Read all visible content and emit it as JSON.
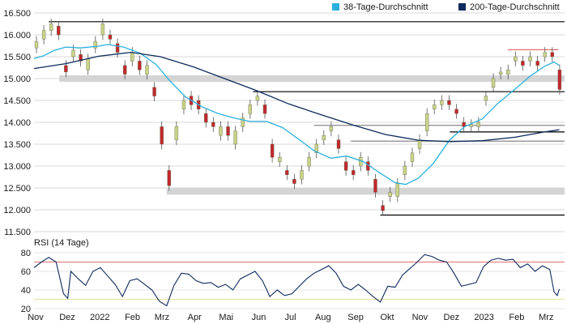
{
  "chart_data": [
    {
      "type": "candlestick",
      "ylim": [
        11500,
        16500
      ],
      "y_ticks": [
        "16.500",
        "16.000",
        "15.500",
        "15.000",
        "14.500",
        "14.000",
        "13.500",
        "13.000",
        "12.500",
        "12.000",
        "11.500"
      ],
      "y_tick_values": [
        16500,
        16000,
        15500,
        15000,
        14500,
        14000,
        13500,
        13000,
        12500,
        12000,
        11500
      ],
      "x_range": [
        "2021-11-01",
        "2023-03-20"
      ],
      "grid": "horizontal",
      "legend_position": "top-right",
      "colors": {
        "up": "#c9d38a",
        "down": "#c0282d",
        "sma38": "#2bb0dc",
        "sma200": "#0e2a5c",
        "support_band": "#d4d4d4",
        "line": "#000000",
        "resistance_red": "#e07070"
      },
      "series": [
        {
          "name": "38-Tage-Durchschnitt",
          "kind": "line",
          "color": "#2bb0dc",
          "points": [
            [
              "2021-11-01",
              15460
            ],
            [
              "2021-11-10",
              15520
            ],
            [
              "2021-11-20",
              15640
            ],
            [
              "2021-12-01",
              15720
            ],
            [
              "2021-12-15",
              15700
            ],
            [
              "2022-01-01",
              15740
            ],
            [
              "2022-01-10",
              15780
            ],
            [
              "2022-01-25",
              15720
            ],
            [
              "2022-02-10",
              15580
            ],
            [
              "2022-02-25",
              15320
            ],
            [
              "2022-03-10",
              14950
            ],
            [
              "2022-03-25",
              14580
            ],
            [
              "2022-04-10",
              14350
            ],
            [
              "2022-04-25",
              14200
            ],
            [
              "2022-05-10",
              14100
            ],
            [
              "2022-05-25",
              14020
            ],
            [
              "2022-06-10",
              14020
            ],
            [
              "2022-06-25",
              13880
            ],
            [
              "2022-07-10",
              13620
            ],
            [
              "2022-07-25",
              13350
            ],
            [
              "2022-08-10",
              13180
            ],
            [
              "2022-08-25",
              13230
            ],
            [
              "2022-09-10",
              13100
            ],
            [
              "2022-09-25",
              12850
            ],
            [
              "2022-10-10",
              12620
            ],
            [
              "2022-10-20",
              12580
            ],
            [
              "2022-11-01",
              12720
            ],
            [
              "2022-11-15",
              13050
            ],
            [
              "2022-12-01",
              13600
            ],
            [
              "2022-12-15",
              13900
            ],
            [
              "2023-01-01",
              14080
            ],
            [
              "2023-01-15",
              14420
            ],
            [
              "2023-02-01",
              14760
            ],
            [
              "2023-02-15",
              15050
            ],
            [
              "2023-03-01",
              15280
            ],
            [
              "2023-03-10",
              15380
            ],
            [
              "2023-03-15",
              15300
            ]
          ]
        },
        {
          "name": "200-Tage-Durchschnitt",
          "kind": "line",
          "color": "#0e2a5c",
          "points": [
            [
              "2021-11-01",
              15230
            ],
            [
              "2021-12-01",
              15340
            ],
            [
              "2022-01-01",
              15510
            ],
            [
              "2022-02-01",
              15600
            ],
            [
              "2022-03-01",
              15500
            ],
            [
              "2022-04-01",
              15270
            ],
            [
              "2022-05-01",
              15000
            ],
            [
              "2022-06-01",
              14720
            ],
            [
              "2022-07-01",
              14420
            ],
            [
              "2022-08-01",
              14170
            ],
            [
              "2022-09-01",
              13930
            ],
            [
              "2022-10-01",
              13720
            ],
            [
              "2022-11-01",
              13590
            ],
            [
              "2022-12-01",
              13560
            ],
            [
              "2023-01-01",
              13580
            ],
            [
              "2023-02-01",
              13660
            ],
            [
              "2023-03-01",
              13780
            ],
            [
              "2023-03-15",
              13830
            ]
          ]
        }
      ],
      "candles_approx": [
        [
          "2021-11-01",
          15700,
          15850
        ],
        [
          "2021-11-08",
          15900,
          16100
        ],
        [
          "2021-11-15",
          16100,
          16250
        ],
        [
          "2021-11-22",
          16200,
          16000
        ],
        [
          "2021-11-29",
          15300,
          15150
        ],
        [
          "2021-12-06",
          15500,
          15650
        ],
        [
          "2021-12-13",
          15550,
          15400
        ],
        [
          "2021-12-20",
          15200,
          15450
        ],
        [
          "2021-12-27",
          15700,
          15850
        ],
        [
          "2022-01-03",
          16000,
          16250
        ],
        [
          "2022-01-10",
          16000,
          15900
        ],
        [
          "2022-01-17",
          15800,
          15600
        ],
        [
          "2022-01-24",
          15300,
          15100
        ],
        [
          "2022-01-31",
          15400,
          15600
        ],
        [
          "2022-02-07",
          15400,
          15200
        ],
        [
          "2022-02-14",
          15100,
          15300
        ],
        [
          "2022-02-21",
          14800,
          14600
        ],
        [
          "2022-02-28",
          13900,
          13500
        ],
        [
          "2022-03-07",
          12900,
          12550
        ],
        [
          "2022-03-14",
          13600,
          13900
        ],
        [
          "2022-03-21",
          14300,
          14500
        ],
        [
          "2022-03-28",
          14600,
          14400
        ],
        [
          "2022-04-04",
          14500,
          14300
        ],
        [
          "2022-04-11",
          14200,
          14000
        ],
        [
          "2022-04-18",
          14000,
          13900
        ],
        [
          "2022-04-25",
          13700,
          13900
        ],
        [
          "2022-05-02",
          13900,
          13700
        ],
        [
          "2022-05-09",
          13500,
          13800
        ],
        [
          "2022-05-16",
          13900,
          14100
        ],
        [
          "2022-05-23",
          14200,
          14400
        ],
        [
          "2022-05-30",
          14500,
          14600
        ],
        [
          "2022-06-06",
          14400,
          14200
        ],
        [
          "2022-06-13",
          13500,
          13200
        ],
        [
          "2022-06-20",
          13100,
          13200
        ],
        [
          "2022-06-27",
          12900,
          12800
        ],
        [
          "2022-07-04",
          12700,
          12600
        ],
        [
          "2022-07-11",
          12700,
          12900
        ],
        [
          "2022-07-18",
          13000,
          13200
        ],
        [
          "2022-07-25",
          13300,
          13500
        ],
        [
          "2022-08-01",
          13600,
          13700
        ],
        [
          "2022-08-08",
          13800,
          13900
        ],
        [
          "2022-08-15",
          13600,
          13400
        ],
        [
          "2022-08-22",
          13100,
          12900
        ],
        [
          "2022-08-29",
          12900,
          12800
        ],
        [
          "2022-09-05",
          13000,
          13200
        ],
        [
          "2022-09-12",
          13100,
          12900
        ],
        [
          "2022-09-19",
          12700,
          12400
        ],
        [
          "2022-09-26",
          12100,
          11980
        ],
        [
          "2022-10-03",
          12300,
          12400
        ],
        [
          "2022-10-10",
          12300,
          12600
        ],
        [
          "2022-10-17",
          12800,
          13000
        ],
        [
          "2022-10-24",
          13100,
          13300
        ],
        [
          "2022-10-31",
          13400,
          13600
        ],
        [
          "2022-11-07",
          13800,
          14200
        ],
        [
          "2022-11-14",
          14300,
          14400
        ],
        [
          "2022-11-21",
          14400,
          14500
        ],
        [
          "2022-11-28",
          14500,
          14400
        ],
        [
          "2022-12-05",
          14300,
          14200
        ],
        [
          "2022-12-12",
          14000,
          13900
        ],
        [
          "2022-12-19",
          13900,
          13950
        ],
        [
          "2022-12-26",
          13900,
          14000
        ],
        [
          "2023-01-02",
          14500,
          14600
        ],
        [
          "2023-01-09",
          14800,
          15000
        ],
        [
          "2023-01-16",
          15100,
          15150
        ],
        [
          "2023-01-23",
          15100,
          15200
        ],
        [
          "2023-01-30",
          15400,
          15500
        ],
        [
          "2023-02-06",
          15400,
          15300
        ],
        [
          "2023-02-13",
          15400,
          15500
        ],
        [
          "2023-02-20",
          15400,
          15300
        ],
        [
          "2023-02-27",
          15500,
          15600
        ],
        [
          "2023-03-06",
          15600,
          15500
        ],
        [
          "2023-03-13",
          15200,
          14750
        ]
      ],
      "horizontal_levels": [
        {
          "kind": "line",
          "y": 16300,
          "from": "2021-11-15",
          "to": "2023-03-20"
        },
        {
          "kind": "band",
          "y": 15000,
          "from": "2021-11-25",
          "to": "2023-03-20"
        },
        {
          "kind": "line",
          "y": 14700,
          "from": "2022-05-28",
          "to": "2023-03-20"
        },
        {
          "kind": "line",
          "y": 13930,
          "from": "2022-07-25",
          "to": "2023-03-20",
          "color": "#888888"
        },
        {
          "kind": "line",
          "y": 13780,
          "from": "2022-12-01",
          "to": "2023-03-20"
        },
        {
          "kind": "line",
          "y": 13570,
          "from": "2022-08-29",
          "to": "2023-03-20",
          "color": "#888888"
        },
        {
          "kind": "band",
          "y": 12420,
          "from": "2022-03-07",
          "to": "2023-03-20"
        },
        {
          "kind": "line",
          "y": 11880,
          "from": "2022-09-26",
          "to": "2023-03-20"
        },
        {
          "kind": "line",
          "y": 15660,
          "from": "2023-01-25",
          "to": "2023-03-14",
          "color": "#e07070"
        }
      ]
    },
    {
      "type": "line",
      "title": "RSI (14 Tage)",
      "ylim": [
        20,
        80
      ],
      "y_ticks": [
        "80",
        "60",
        "40",
        "20"
      ],
      "y_tick_values": [
        80,
        60,
        40,
        20
      ],
      "reference_lines": [
        {
          "y": 70,
          "color": "#e07070"
        },
        {
          "y": 30,
          "color": "#e8e0a0"
        }
      ],
      "series": [
        {
          "name": "RSI",
          "color": "#0e2a5c",
          "points": [
            [
              "2021-11-01",
              64
            ],
            [
              "2021-11-08",
              70
            ],
            [
              "2021-11-15",
              75
            ],
            [
              "2021-11-22",
              70
            ],
            [
              "2021-11-29",
              36
            ],
            [
              "2021-12-03",
              31
            ],
            [
              "2021-12-06",
              60
            ],
            [
              "2021-12-13",
              52
            ],
            [
              "2021-12-20",
              45
            ],
            [
              "2021-12-27",
              60
            ],
            [
              "2022-01-03",
              64
            ],
            [
              "2022-01-10",
              55
            ],
            [
              "2022-01-17",
              46
            ],
            [
              "2022-01-24",
              33
            ],
            [
              "2022-01-31",
              50
            ],
            [
              "2022-02-07",
              52
            ],
            [
              "2022-02-14",
              46
            ],
            [
              "2022-02-21",
              40
            ],
            [
              "2022-02-28",
              28
            ],
            [
              "2022-03-07",
              23
            ],
            [
              "2022-03-14",
              45
            ],
            [
              "2022-03-21",
              58
            ],
            [
              "2022-03-28",
              57
            ],
            [
              "2022-04-04",
              50
            ],
            [
              "2022-04-11",
              47
            ],
            [
              "2022-04-18",
              48
            ],
            [
              "2022-04-25",
              43
            ],
            [
              "2022-05-02",
              46
            ],
            [
              "2022-05-09",
              40
            ],
            [
              "2022-05-16",
              52
            ],
            [
              "2022-05-23",
              56
            ],
            [
              "2022-05-30",
              60
            ],
            [
              "2022-06-06",
              50
            ],
            [
              "2022-06-13",
              33
            ],
            [
              "2022-06-20",
              40
            ],
            [
              "2022-06-27",
              34
            ],
            [
              "2022-07-04",
              36
            ],
            [
              "2022-07-11",
              44
            ],
            [
              "2022-07-18",
              52
            ],
            [
              "2022-07-25",
              58
            ],
            [
              "2022-08-01",
              62
            ],
            [
              "2022-08-08",
              66
            ],
            [
              "2022-08-15",
              58
            ],
            [
              "2022-08-22",
              44
            ],
            [
              "2022-08-29",
              40
            ],
            [
              "2022-09-05",
              46
            ],
            [
              "2022-09-12",
              40
            ],
            [
              "2022-09-19",
              33
            ],
            [
              "2022-09-26",
              27
            ],
            [
              "2022-10-03",
              44
            ],
            [
              "2022-10-10",
              43
            ],
            [
              "2022-10-17",
              56
            ],
            [
              "2022-10-24",
              63
            ],
            [
              "2022-10-31",
              70
            ],
            [
              "2022-11-07",
              78
            ],
            [
              "2022-11-14",
              76
            ],
            [
              "2022-11-21",
              72
            ],
            [
              "2022-11-28",
              70
            ],
            [
              "2022-12-05",
              58
            ],
            [
              "2022-12-12",
              44
            ],
            [
              "2022-12-19",
              46
            ],
            [
              "2022-12-26",
              48
            ],
            [
              "2023-01-02",
              65
            ],
            [
              "2023-01-09",
              72
            ],
            [
              "2023-01-16",
              74
            ],
            [
              "2023-01-23",
              72
            ],
            [
              "2023-01-30",
              73
            ],
            [
              "2023-02-06",
              64
            ],
            [
              "2023-02-13",
              68
            ],
            [
              "2023-02-20",
              60
            ],
            [
              "2023-02-27",
              66
            ],
            [
              "2023-03-06",
              62
            ],
            [
              "2023-03-10",
              38
            ],
            [
              "2023-03-13",
              34
            ],
            [
              "2023-03-15",
              41
            ]
          ]
        }
      ]
    }
  ],
  "legend": [
    {
      "label": "38-Tage-Durchschnitt",
      "color": "#2bb0dc"
    },
    {
      "label": "200-Tage-Durchschnitt",
      "color": "#0e2a5c"
    }
  ],
  "rsi_title": "RSI (14 Tage)",
  "x_ticks": [
    {
      "label": "Nov",
      "date": "2021-11-01"
    },
    {
      "label": "Dez",
      "date": "2021-12-01"
    },
    {
      "label": "2022",
      "date": "2022-01-01"
    },
    {
      "label": "Feb",
      "date": "2022-02-01"
    },
    {
      "label": "Mrz",
      "date": "2022-03-01"
    },
    {
      "label": "Apr",
      "date": "2022-04-01"
    },
    {
      "label": "Mai",
      "date": "2022-05-01"
    },
    {
      "label": "Jun",
      "date": "2022-06-01"
    },
    {
      "label": "Jul",
      "date": "2022-07-01"
    },
    {
      "label": "Aug",
      "date": "2022-08-01"
    },
    {
      "label": "Sep",
      "date": "2022-09-01"
    },
    {
      "label": "Okt",
      "date": "2022-10-01"
    },
    {
      "label": "Nov",
      "date": "2022-11-01"
    },
    {
      "label": "Dez",
      "date": "2022-12-01"
    },
    {
      "label": "2023",
      "date": "2023-01-01"
    },
    {
      "label": "Feb",
      "date": "2023-02-01"
    },
    {
      "label": "Mrz",
      "date": "2023-03-01"
    }
  ]
}
